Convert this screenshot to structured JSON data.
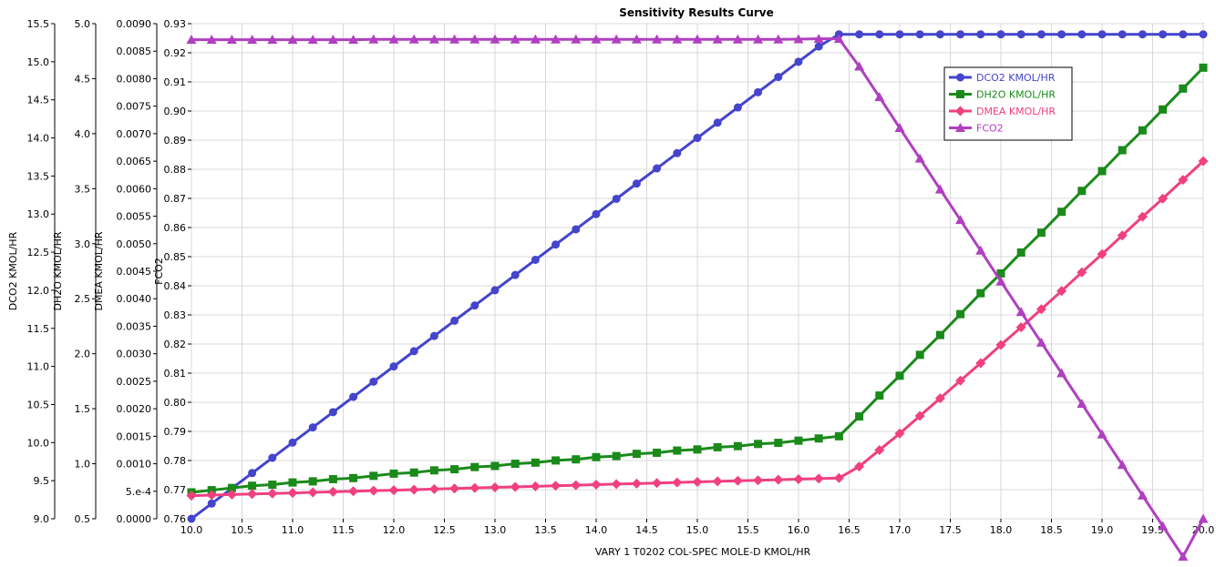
{
  "chart_data": {
    "type": "line",
    "title": "Sensitivity Results Curve",
    "xlabel": "VARY   1 T0202 COL-SPEC MOLE-D KMOL/HR",
    "xlim": [
      10.0,
      20.0
    ],
    "x_ticks": [
      "10.0",
      "10.5",
      "11.0",
      "11.5",
      "12.0",
      "12.5",
      "13.0",
      "13.5",
      "14.0",
      "14.5",
      "15.0",
      "15.5",
      "16.0",
      "16.5",
      "17.0",
      "17.5",
      "18.0",
      "18.5",
      "19.0",
      "19.5",
      "20.0"
    ],
    "grid": true,
    "legend_position": "top-right",
    "axes": [
      {
        "id": "dco2",
        "label": "DCO2 KMOL/HR",
        "ylim": [
          9.0,
          15.5
        ],
        "ticks": [
          "9.0",
          "9.5",
          "10.0",
          "10.5",
          "11.0",
          "11.5",
          "12.0",
          "12.5",
          "13.0",
          "13.5",
          "14.0",
          "14.5",
          "15.0",
          "15.5"
        ]
      },
      {
        "id": "dh2o",
        "label": "DH2O KMOL/HR",
        "ylim": [
          0.5,
          5.0
        ],
        "ticks": [
          "0.5",
          "1.0",
          "1.5",
          "2.0",
          "2.5",
          "3.0",
          "3.5",
          "4.0",
          "4.5",
          "5.0"
        ]
      },
      {
        "id": "dmea",
        "label": "DMEA KMOL/HR",
        "ylim": [
          0.0,
          0.009
        ],
        "ticks": [
          "0.0000",
          "5.e-4",
          "0.0010",
          "0.0015",
          "0.0020",
          "0.0025",
          "0.0030",
          "0.0035",
          "0.0040",
          "0.0045",
          "0.0050",
          "0.0055",
          "0.0060",
          "0.0065",
          "0.0070",
          "0.0075",
          "0.0080",
          "0.0085",
          "0.0090"
        ]
      },
      {
        "id": "fco2",
        "label": "FCO2",
        "ylim": [
          0.76,
          0.93
        ],
        "ticks": [
          "0.76",
          "0.77",
          "0.78",
          "0.79",
          "0.80",
          "0.81",
          "0.82",
          "0.83",
          "0.84",
          "0.85",
          "0.86",
          "0.87",
          "0.88",
          "0.89",
          "0.90",
          "0.91",
          "0.92",
          "0.93"
        ]
      }
    ],
    "series": [
      {
        "name": "DCO2 KMOL/HR",
        "axis": "dco2",
        "color": "#4444cc",
        "marker": "circle",
        "x": [
          10.0,
          10.2,
          10.4,
          10.6,
          10.8,
          11.0,
          11.2,
          11.4,
          11.6,
          11.8,
          12.0,
          12.2,
          12.4,
          12.6,
          12.8,
          13.0,
          13.2,
          13.4,
          13.6,
          13.8,
          14.0,
          14.2,
          14.4,
          14.6,
          14.8,
          15.0,
          15.2,
          15.4,
          15.6,
          15.8,
          16.0,
          16.2,
          16.4,
          16.6,
          16.8,
          17.0,
          17.2,
          17.4,
          17.6,
          17.8,
          18.0,
          18.2,
          18.4,
          18.6,
          18.8,
          19.0,
          19.2,
          19.4,
          19.6,
          19.8,
          20.0
        ],
        "values": [
          9.0,
          9.2,
          9.4,
          9.6,
          9.8,
          10.0,
          10.2,
          10.4,
          10.6,
          10.8,
          11.0,
          11.2,
          11.4,
          11.6,
          11.8,
          12.0,
          12.2,
          12.4,
          12.6,
          12.8,
          13.0,
          13.2,
          13.4,
          13.6,
          13.8,
          14.0,
          14.2,
          14.4,
          14.6,
          14.8,
          15.0,
          15.2,
          15.36,
          15.36,
          15.36,
          15.36,
          15.36,
          15.36,
          15.36,
          15.36,
          15.36,
          15.36,
          15.36,
          15.36,
          15.36,
          15.36,
          15.36,
          15.36,
          15.36,
          15.36,
          15.36
        ]
      },
      {
        "name": "DH2O KMOL/HR",
        "axis": "dh2o",
        "color": "#1a8a1a",
        "marker": "square",
        "x": [
          10.0,
          10.2,
          10.4,
          10.6,
          10.8,
          11.0,
          11.2,
          11.4,
          11.6,
          11.8,
          12.0,
          12.2,
          12.4,
          12.6,
          12.8,
          13.0,
          13.2,
          13.4,
          13.6,
          13.8,
          14.0,
          14.2,
          14.4,
          14.6,
          14.8,
          15.0,
          15.2,
          15.4,
          15.6,
          15.8,
          16.0,
          16.2,
          16.4,
          16.6,
          16.8,
          17.0,
          17.2,
          17.4,
          17.6,
          17.8,
          18.0,
          18.2,
          18.4,
          18.6,
          18.8,
          19.0,
          19.2,
          19.4,
          19.6,
          19.8,
          20.0
        ],
        "values": [
          0.74,
          0.76,
          0.78,
          0.8,
          0.81,
          0.83,
          0.84,
          0.86,
          0.87,
          0.89,
          0.91,
          0.92,
          0.94,
          0.95,
          0.97,
          0.98,
          1.0,
          1.01,
          1.03,
          1.04,
          1.06,
          1.07,
          1.09,
          1.1,
          1.12,
          1.13,
          1.15,
          1.16,
          1.18,
          1.19,
          1.21,
          1.23,
          1.25,
          1.43,
          1.62,
          1.8,
          1.99,
          2.17,
          2.36,
          2.55,
          2.73,
          2.92,
          3.1,
          3.29,
          3.48,
          3.66,
          3.85,
          4.03,
          4.22,
          4.41,
          4.6
        ]
      },
      {
        "name": "DMEA KMOL/HR",
        "axis": "dmea",
        "color": "#f04080",
        "marker": "diamond",
        "x": [
          10.0,
          10.2,
          10.4,
          10.6,
          10.8,
          11.0,
          11.2,
          11.4,
          11.6,
          11.8,
          12.0,
          12.2,
          12.4,
          12.6,
          12.8,
          13.0,
          13.2,
          13.4,
          13.6,
          13.8,
          14.0,
          14.2,
          14.4,
          14.6,
          14.8,
          15.0,
          15.2,
          15.4,
          15.6,
          15.8,
          16.0,
          16.2,
          16.4,
          16.6,
          16.8,
          17.0,
          17.2,
          17.4,
          17.6,
          17.8,
          18.0,
          18.2,
          18.4,
          18.6,
          18.8,
          19.0,
          19.2,
          19.4,
          19.6,
          19.8,
          20.0
        ],
        "values": [
          0.00042,
          0.00043,
          0.00044,
          0.00045,
          0.00046,
          0.00047,
          0.00048,
          0.00049,
          0.0005,
          0.00051,
          0.00052,
          0.00053,
          0.00054,
          0.00055,
          0.00056,
          0.00057,
          0.00058,
          0.00059,
          0.0006,
          0.00061,
          0.00062,
          0.00063,
          0.00064,
          0.00065,
          0.00066,
          0.00067,
          0.00068,
          0.00069,
          0.0007,
          0.00071,
          0.00072,
          0.00073,
          0.00074,
          0.00095,
          0.00125,
          0.00155,
          0.00187,
          0.00219,
          0.00251,
          0.00283,
          0.00316,
          0.00348,
          0.00381,
          0.00414,
          0.00448,
          0.00481,
          0.00515,
          0.00549,
          0.00582,
          0.00616,
          0.0065
        ]
      },
      {
        "name": "FCO2",
        "axis": "fco2",
        "color": "#b040c0",
        "marker": "triangle",
        "x": [
          10.0,
          10.2,
          10.4,
          10.6,
          10.8,
          11.0,
          11.2,
          11.4,
          11.6,
          11.8,
          12.0,
          12.2,
          12.4,
          12.6,
          12.8,
          13.0,
          13.2,
          13.4,
          13.6,
          13.8,
          14.0,
          14.2,
          14.4,
          14.6,
          14.8,
          15.0,
          15.2,
          15.4,
          15.6,
          15.8,
          16.0,
          16.2,
          16.4,
          16.6,
          16.8,
          17.0,
          17.2,
          17.4,
          17.6,
          17.8,
          18.0,
          18.2,
          18.4,
          18.6,
          18.8,
          19.0,
          19.2,
          19.4,
          19.6,
          19.8,
          20.0
        ],
        "values": [
          0.9245,
          0.9245,
          0.9245,
          0.9245,
          0.9245,
          0.9245,
          0.9245,
          0.9245,
          0.9245,
          0.9246,
          0.9246,
          0.9246,
          0.9246,
          0.9246,
          0.9246,
          0.9246,
          0.9246,
          0.9246,
          0.9246,
          0.9246,
          0.9246,
          0.9246,
          0.9246,
          0.9246,
          0.9246,
          0.9246,
          0.9246,
          0.9246,
          0.9246,
          0.9246,
          0.9247,
          0.9248,
          0.9248,
          0.9153,
          0.9048,
          0.8942,
          0.8837,
          0.8731,
          0.8626,
          0.8521,
          0.8415,
          0.831,
          0.8205,
          0.81,
          0.7995,
          0.789,
          0.7785,
          0.768,
          0.7575,
          0.747,
          0.76
        ]
      }
    ]
  }
}
